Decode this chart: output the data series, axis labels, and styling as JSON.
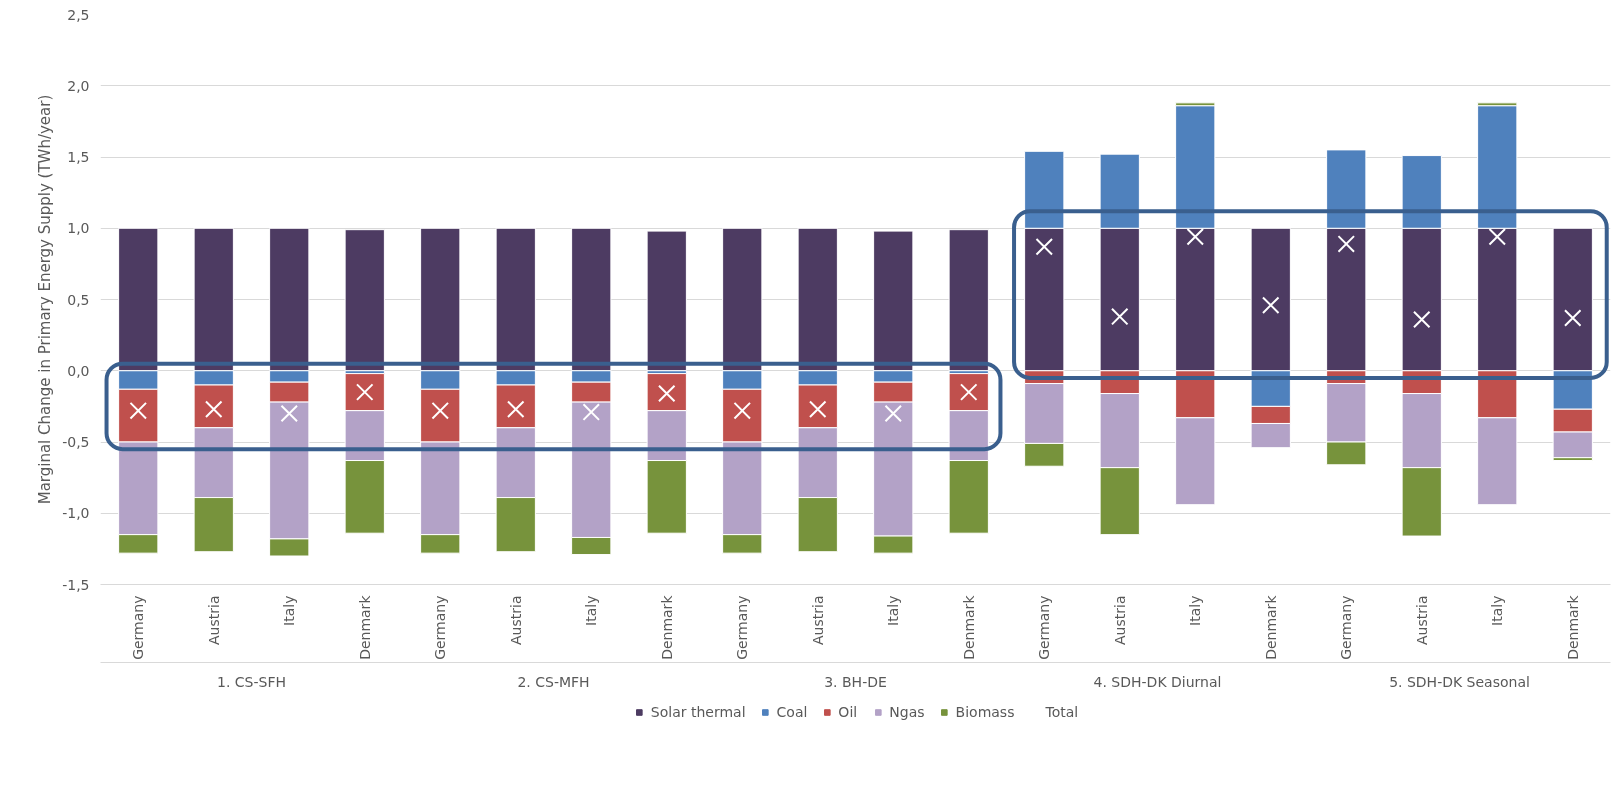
{
  "chart_data": {
    "type": "bar",
    "stacked": true,
    "ylabel": "Marginal Change in Primary Energy Supply (TWh/year)",
    "categories": [
      "Germany",
      "Austria",
      "Italy",
      "Denmark",
      "Germany",
      "Austria",
      "Italy",
      "Denmark",
      "Germany",
      "Austria",
      "Italy",
      "Denmark",
      "Germany",
      "Austria",
      "Italy",
      "Denmark",
      "Germany",
      "Austria",
      "Italy",
      "Denmark"
    ],
    "annotations": [
      "1. CS-SFH",
      "2. CS-MFH",
      "3. BH-DE",
      "4. SDH-DK Diurnal",
      "5. SDH-DK Seasonal"
    ],
    "series": [
      {
        "name": "Solar thermal",
        "color": "#4d3b62",
        "values": [
          1.0,
          1.0,
          1.0,
          0.99,
          1.0,
          1.0,
          1.0,
          0.98,
          1.0,
          1.0,
          0.98,
          0.99,
          1.0,
          1.0,
          1.0,
          1.0,
          1.0,
          1.0,
          1.0,
          1.0
        ]
      },
      {
        "name": "Coal",
        "color": "#4f81bd",
        "values": [
          -0.13,
          -0.1,
          -0.08,
          -0.02,
          -0.13,
          -0.1,
          -0.08,
          -0.02,
          -0.13,
          -0.1,
          -0.08,
          -0.02,
          0.54,
          0.52,
          0.86,
          -0.25,
          0.55,
          0.51,
          0.86,
          -0.27
        ]
      },
      {
        "name": "Oil",
        "color": "#c0504d",
        "values": [
          -0.37,
          -0.3,
          -0.14,
          -0.26,
          -0.37,
          -0.3,
          -0.14,
          -0.26,
          -0.37,
          -0.3,
          -0.14,
          -0.26,
          -0.09,
          -0.16,
          -0.33,
          -0.12,
          -0.09,
          -0.16,
          -0.33,
          -0.16
        ]
      },
      {
        "name": "Ngas",
        "color": "#b3a2c7",
        "values": [
          -0.65,
          -0.49,
          -0.96,
          -0.35,
          -0.65,
          -0.49,
          -0.95,
          -0.35,
          -0.65,
          -0.49,
          -0.94,
          -0.35,
          -0.42,
          -0.52,
          -0.61,
          -0.17,
          -0.41,
          -0.52,
          -0.61,
          -0.18
        ]
      },
      {
        "name": "Biomass",
        "color": "#77933c",
        "values": [
          -0.13,
          -0.38,
          -0.12,
          -0.51,
          -0.13,
          -0.38,
          -0.12,
          -0.51,
          -0.13,
          -0.38,
          -0.12,
          -0.51,
          -0.16,
          -0.47,
          0.02,
          null,
          -0.16,
          -0.48,
          0.02,
          -0.02
        ]
      },
      {
        "name": "Total",
        "type": "scatter",
        "marker": "cross",
        "color": "#ffffff",
        "values": [
          -0.28,
          -0.27,
          -0.3,
          -0.15,
          -0.28,
          -0.27,
          -0.29,
          -0.16,
          -0.28,
          -0.27,
          -0.3,
          -0.15,
          0.87,
          0.38,
          0.94,
          0.46,
          0.89,
          0.36,
          0.94,
          0.37
        ]
      }
    ],
    "ylim": [
      -1.5,
      2.5
    ],
    "yticks": [
      {
        "value": -1.5,
        "label": "-1,5"
      },
      {
        "value": -1.0,
        "label": "-1,0"
      },
      {
        "value": -0.5,
        "label": "-0,5"
      },
      {
        "value": 0,
        "label": "0,0"
      },
      {
        "value": 0.5,
        "label": "0,5"
      },
      {
        "value": 1.0,
        "label": "1,0"
      },
      {
        "value": 1.5,
        "label": "1,5"
      },
      {
        "value": 2.0,
        "label": "2,0"
      },
      {
        "value": 2.5,
        "label": "2,5"
      }
    ],
    "grid": "y",
    "legend": "bottom"
  }
}
